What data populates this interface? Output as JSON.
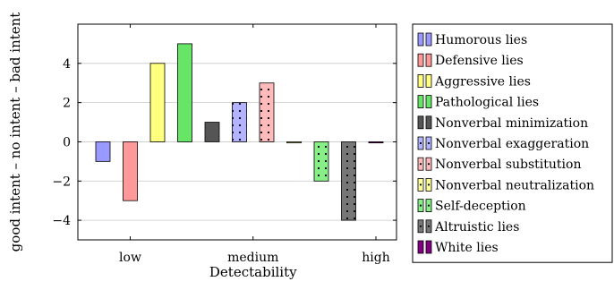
{
  "chart_data": {
    "type": "bar",
    "xlabel": "Detectability",
    "ylabel": "good intent – no intent – bad intent",
    "ylim": [
      -5,
      6
    ],
    "yticks": [
      -4,
      -2,
      0,
      2,
      4
    ],
    "ytick_labels": [
      "−4",
      "−2",
      "0",
      "2",
      "4"
    ],
    "xticks": [
      {
        "label": "low",
        "pos": 1.0
      },
      {
        "label": "medium",
        "pos": 5.5
      },
      {
        "label": "high",
        "pos": 10.0
      }
    ],
    "grid": true,
    "legend_position": "outside-right",
    "series": [
      {
        "name": "Humorous lies",
        "x": 0,
        "value": -1,
        "color": "#9999ff",
        "pattern": "none"
      },
      {
        "name": "Defensive lies",
        "x": 1,
        "value": -3,
        "color": "#ff9999",
        "pattern": "none"
      },
      {
        "name": "Aggressive lies",
        "x": 2,
        "value": 4,
        "color": "#ffff80",
        "pattern": "none"
      },
      {
        "name": "Pathological lies",
        "x": 3,
        "value": 5,
        "color": "#66e566",
        "pattern": "none"
      },
      {
        "name": "Nonverbal minimization",
        "x": 4,
        "value": 1,
        "color": "#555555",
        "pattern": "none"
      },
      {
        "name": "Nonverbal exaggeration",
        "x": 5,
        "value": 2,
        "color": "#b3b3ff",
        "pattern": "dots"
      },
      {
        "name": "Nonverbal substitution",
        "x": 6,
        "value": 3,
        "color": "#ffbbbb",
        "pattern": "dots"
      },
      {
        "name": "Nonverbal neutralization",
        "x": 7,
        "value": 0,
        "color": "#ffff99",
        "pattern": "dots"
      },
      {
        "name": "Self-deception",
        "x": 8,
        "value": -2,
        "color": "#88ee88",
        "pattern": "dots"
      },
      {
        "name": "Altruistic lies",
        "x": 9,
        "value": -4,
        "color": "#777777",
        "pattern": "dots"
      },
      {
        "name": "White lies",
        "x": 10,
        "value": 0,
        "color": "#800080",
        "pattern": "none"
      }
    ]
  }
}
